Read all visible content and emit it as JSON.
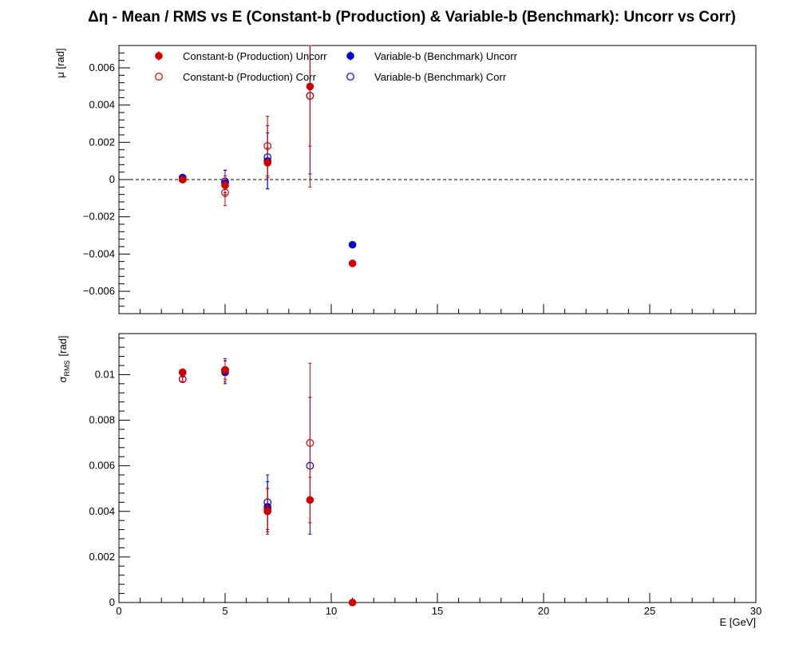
{
  "chart_data": {
    "type": "scatter",
    "title": "Δη  -  Mean / RMS vs E  (Constant-b (Production) & Variable-b (Benchmark): Uncorr vs Corr)",
    "xlabel": "E  [GeV]",
    "xlim": [
      0,
      30
    ],
    "xticks": [
      0,
      5,
      10,
      15,
      20,
      25,
      30
    ],
    "legend_position": "top-left",
    "colors": {
      "red": "#cc0000",
      "blue": "#0000cc"
    },
    "legend": [
      {
        "label": "Constant-b (Production) Uncorr",
        "color": "#cc0000",
        "marker": "filled"
      },
      {
        "label": "Variable-b (Benchmark) Uncorr",
        "color": "#0000cc",
        "marker": "filled"
      },
      {
        "label": "Constant-b (Production) Corr",
        "color": "#cc0000",
        "marker": "open"
      },
      {
        "label": "Variable-b (Benchmark) Corr",
        "color": "#0000cc",
        "marker": "open"
      }
    ],
    "panels": [
      {
        "ylabel": "μ  [rad]",
        "ylim": [
          -0.0072,
          0.0072
        ],
        "yticks": [
          -0.006,
          -0.004,
          -0.002,
          0,
          0.002,
          0.004,
          0.006
        ],
        "ytick_labels": [
          "−0.006",
          "−0.004",
          "−0.002",
          "0",
          "0.002",
          "0.004",
          "0.006"
        ],
        "zero_line": true,
        "series": [
          {
            "legend": 1,
            "color": "#0000cc",
            "marker": "filled",
            "points": [
              {
                "x": 3,
                "y": 0.0001,
                "err": 0.0001
              },
              {
                "x": 5,
                "y": -0.0002,
                "err": 0.0007
              },
              {
                "x": 7,
                "y": 0.001,
                "err": 0.0015
              },
              {
                "x": 11,
                "y": -0.0035,
                "err": 0
              }
            ]
          },
          {
            "legend": 3,
            "color": "#0000cc",
            "marker": "open",
            "points": [
              {
                "x": 3,
                "y": 0.0001,
                "err": 0.0001
              },
              {
                "x": 5,
                "y": -0.0001,
                "err": 0.0006
              },
              {
                "x": 7,
                "y": 0.0012,
                "err": 0.0017
              },
              {
                "x": 9,
                "y": 0.0045,
                "err": 0.0042
              }
            ]
          },
          {
            "legend": 0,
            "color": "#cc0000",
            "marker": "filled",
            "points": [
              {
                "x": 3,
                "y": 0.0,
                "err": 0.0001
              },
              {
                "x": 5,
                "y": -0.0003,
                "err": 0.0005
              },
              {
                "x": 7,
                "y": 0.0009,
                "err": 0.0008
              },
              {
                "x": 9,
                "y": 0.005,
                "err": 0.0032
              },
              {
                "x": 11,
                "y": -0.0045,
                "err": 0
              }
            ]
          },
          {
            "legend": 2,
            "color": "#cc0000",
            "marker": "open",
            "points": [
              {
                "x": 3,
                "y": 0.0,
                "err": 0.0001
              },
              {
                "x": 5,
                "y": -0.0007,
                "err": 0.0007
              },
              {
                "x": 7,
                "y": 0.0018,
                "err": 0.0016
              },
              {
                "x": 9,
                "y": 0.0045,
                "err": 0.0049
              }
            ]
          }
        ]
      },
      {
        "ylabel": "σ",
        "ylabel_sub": "RMS",
        "ylabel_unit": "[rad]",
        "ylim": [
          0,
          0.0118
        ],
        "yticks": [
          0,
          0.002,
          0.004,
          0.006,
          0.008,
          0.01
        ],
        "ytick_labels": [
          "0",
          "0.002",
          "0.004",
          "0.006",
          "0.008",
          "0.01"
        ],
        "zero_line": false,
        "series": [
          {
            "legend": 1,
            "color": "#0000cc",
            "marker": "filled",
            "points": [
              {
                "x": 3,
                "y": 0.0101,
                "err": 0.0001
              },
              {
                "x": 5,
                "y": 0.0101,
                "err": 0.0005
              },
              {
                "x": 7,
                "y": 0.0042,
                "err": 0.0011
              }
            ]
          },
          {
            "legend": 3,
            "color": "#0000cc",
            "marker": "open",
            "points": [
              {
                "x": 3,
                "y": 0.0098,
                "err": 0.0001
              },
              {
                "x": 5,
                "y": 0.0102,
                "err": 0.0004
              },
              {
                "x": 7,
                "y": 0.0044,
                "err": 0.0012
              },
              {
                "x": 9,
                "y": 0.006,
                "err": 0.003
              }
            ]
          },
          {
            "legend": 0,
            "color": "#cc0000",
            "marker": "filled",
            "points": [
              {
                "x": 3,
                "y": 0.0101,
                "err": 0.0001
              },
              {
                "x": 5,
                "y": 0.0102,
                "err": 0.0005
              },
              {
                "x": 7,
                "y": 0.004,
                "err": 0.001
              },
              {
                "x": 9,
                "y": 0.0045,
                "err": 0.001
              },
              {
                "x": 11,
                "y": 0.0,
                "err": 0
              }
            ]
          },
          {
            "legend": 2,
            "color": "#cc0000",
            "marker": "open",
            "points": [
              {
                "x": 3,
                "y": 0.0098,
                "err": 0.0001
              },
              {
                "x": 5,
                "y": 0.0102,
                "err": 0.0005
              },
              {
                "x": 7,
                "y": 0.0041,
                "err": 0.0009
              },
              {
                "x": 9,
                "y": 0.007,
                "err": 0.0035
              }
            ]
          }
        ]
      }
    ]
  }
}
